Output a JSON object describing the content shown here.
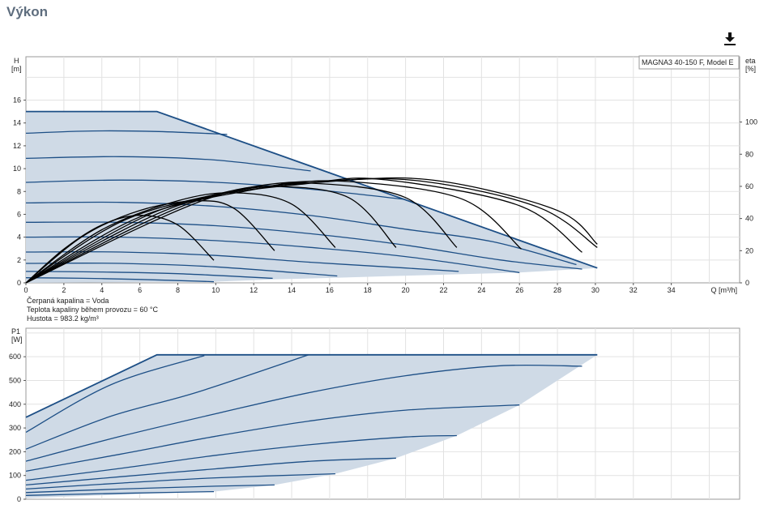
{
  "page": {
    "title": "Výkon"
  },
  "toolbar": {
    "download_icon": "download-icon"
  },
  "fluid_info": {
    "line1": "Čerpaná kapalina = Voda",
    "line2": "Teplota kapaliny během provozu = 60 °C",
    "line3": "Hustota = 983.2 kg/m³"
  },
  "colors": {
    "curve": "#1d4f86",
    "area": "#cfdae6",
    "efficiency": "#000000",
    "grid": "#e2e2e2",
    "title": "#5e6d7e"
  },
  "chart_data": [
    {
      "type": "line",
      "legend": "MAGNA3 40-150 F, Model E",
      "ylabel_top": "H",
      "ylabel_unit": "[m]",
      "y2label_top": "eta",
      "y2label_unit": "[%]",
      "xlabel": "Q [m³/h]",
      "xlim": [
        0,
        37.6
      ],
      "ylim": [
        0,
        19.8
      ],
      "x_ticks": [
        0,
        2,
        4,
        6,
        8,
        10,
        12,
        14,
        16,
        18,
        20,
        22,
        24,
        26,
        28,
        30,
        32,
        34
      ],
      "y_ticks": [
        0,
        2,
        4,
        6,
        8,
        10,
        12,
        14,
        16
      ],
      "y2_ticks": [
        0,
        20,
        40,
        60,
        80,
        100
      ],
      "y2lim": [
        0,
        100
      ],
      "grid": true,
      "max_envelope": {
        "x": [
          0,
          6.9,
          30.1
        ],
        "y": [
          15,
          15,
          1.3
        ]
      },
      "series": [
        {
          "values": [
            [
              0,
              13.1
            ],
            [
              3.5,
              13.3
            ],
            [
              7,
              13.25
            ],
            [
              10.6,
              13.0
            ]
          ]
        },
        {
          "values": [
            [
              0,
              10.9
            ],
            [
              5,
              11.05
            ],
            [
              10,
              10.75
            ],
            [
              15,
              9.8
            ]
          ]
        },
        {
          "values": [
            [
              0,
              8.8
            ],
            [
              5,
              9.0
            ],
            [
              10,
              8.8
            ],
            [
              15,
              8.2
            ],
            [
              20,
              7.3
            ]
          ]
        },
        {
          "values": [
            [
              0,
              7.0
            ],
            [
              5,
              7.05
            ],
            [
              10,
              6.7
            ],
            [
              15,
              5.9
            ],
            [
              20,
              4.7
            ],
            [
              24.6,
              3.6
            ],
            [
              29.0,
              1.6
            ]
          ]
        },
        {
          "values": [
            [
              0,
              5.3
            ],
            [
              5,
              5.3
            ],
            [
              10,
              5.0
            ],
            [
              15,
              4.3
            ],
            [
              20,
              3.3
            ],
            [
              25,
              2.0
            ],
            [
              29.3,
              1.2
            ]
          ]
        },
        {
          "values": [
            [
              0,
              4.0
            ],
            [
              5,
              4.0
            ],
            [
              10,
              3.7
            ],
            [
              15,
              3.1
            ],
            [
              20,
              2.3
            ],
            [
              26,
              0.9
            ]
          ]
        },
        {
          "values": [
            [
              0,
              2.7
            ],
            [
              5,
              2.7
            ],
            [
              10,
              2.4
            ],
            [
              15,
              1.8
            ],
            [
              20,
              1.3
            ],
            [
              22.8,
              1.0
            ]
          ]
        },
        {
          "values": [
            [
              0,
              1.7
            ],
            [
              5,
              1.7
            ],
            [
              10,
              1.4
            ],
            [
              16.4,
              0.6
            ]
          ]
        },
        {
          "values": [
            [
              0,
              1.0
            ],
            [
              4,
              0.95
            ],
            [
              8,
              0.8
            ],
            [
              13,
              0.4
            ]
          ]
        },
        {
          "values": [
            [
              0,
              0.45
            ],
            [
              3,
              0.4
            ],
            [
              6,
              0.3
            ],
            [
              9.9,
              0.1
            ]
          ]
        }
      ],
      "efficiency_curves": [
        {
          "values": [
            [
              0,
              0
            ],
            [
              2,
              21
            ],
            [
              4,
              36
            ],
            [
              6,
              42
            ],
            [
              8,
              36
            ],
            [
              9.9,
              14
            ]
          ]
        },
        {
          "values": [
            [
              0,
              0
            ],
            [
              3,
              29
            ],
            [
              6,
              45
            ],
            [
              9,
              51
            ],
            [
              11,
              46
            ],
            [
              13.1,
              20
            ]
          ]
        },
        {
          "values": [
            [
              0,
              0
            ],
            [
              4,
              33
            ],
            [
              8,
              51
            ],
            [
              11,
              56
            ],
            [
              14,
              49
            ],
            [
              16.3,
              22
            ]
          ]
        },
        {
          "values": [
            [
              0,
              0
            ],
            [
              5,
              38
            ],
            [
              10,
              55
            ],
            [
              13,
              60
            ],
            [
              17,
              53
            ],
            [
              19.5,
              22
            ]
          ]
        },
        {
          "values": [
            [
              0,
              0
            ],
            [
              6,
              41
            ],
            [
              12,
              58
            ],
            [
              15,
              62
            ],
            [
              20,
              53
            ],
            [
              22.7,
              22
            ]
          ]
        },
        {
          "values": [
            [
              0,
              0
            ],
            [
              7,
              45
            ],
            [
              13,
              60
            ],
            [
              17,
              63
            ],
            [
              23,
              52
            ],
            [
              26.1,
              21
            ]
          ]
        },
        {
          "values": [
            [
              0,
              0
            ],
            [
              8,
              48
            ],
            [
              15,
              62
            ],
            [
              19,
              64
            ],
            [
              26,
              48
            ],
            [
              29.3,
              19
            ]
          ]
        },
        {
          "values": [
            [
              0,
              0
            ],
            [
              9,
              51
            ],
            [
              16,
              63
            ],
            [
              21,
              63
            ],
            [
              27,
              47
            ],
            [
              30.1,
              22
            ]
          ]
        },
        {
          "values": [
            [
              0,
              0
            ],
            [
              10,
              54
            ],
            [
              17,
              64
            ],
            [
              22,
              63
            ],
            [
              28,
              45
            ],
            [
              30.1,
              24
            ]
          ]
        }
      ]
    },
    {
      "type": "line",
      "ylabel_top": "P1",
      "ylabel_unit": "[W]",
      "xlim": [
        0,
        37.6
      ],
      "ylim": [
        0,
        720
      ],
      "y_ticks": [
        0,
        100,
        200,
        300,
        400,
        500,
        600
      ],
      "grid": true,
      "max_envelope": {
        "x": [
          0,
          6.9,
          30.1
        ],
        "y": [
          345,
          608,
          608
        ]
      },
      "series": [
        {
          "values": [
            [
              0,
              282
            ],
            [
              4.5,
              483
            ],
            [
              9.4,
              605
            ]
          ]
        },
        {
          "values": [
            [
              0,
              211
            ],
            [
              4.5,
              350
            ],
            [
              9,
              450
            ],
            [
              14.9,
              608
            ]
          ]
        },
        {
          "values": [
            [
              0,
              160
            ],
            [
              5,
              265
            ],
            [
              10,
              360
            ],
            [
              15,
              450
            ],
            [
              20,
              520
            ],
            [
              25,
              562
            ],
            [
              29.3,
              560
            ]
          ]
        },
        {
          "values": [
            [
              0,
              118
            ],
            [
              5,
              190
            ],
            [
              10,
              265
            ],
            [
              15,
              330
            ],
            [
              20,
              375
            ],
            [
              26,
              397
            ]
          ]
        },
        {
          "values": [
            [
              0,
              80
            ],
            [
              5,
              130
            ],
            [
              10,
              185
            ],
            [
              15,
              230
            ],
            [
              20,
              262
            ],
            [
              22.7,
              268
            ]
          ]
        },
        {
          "values": [
            [
              0,
              60
            ],
            [
              5,
              95
            ],
            [
              10,
              128
            ],
            [
              15,
              160
            ],
            [
              19.5,
              173
            ]
          ]
        },
        {
          "values": [
            [
              0,
              43
            ],
            [
              5,
              68
            ],
            [
              10,
              90
            ],
            [
              16.3,
              107
            ]
          ]
        },
        {
          "values": [
            [
              0,
              28
            ],
            [
              5,
              43
            ],
            [
              10,
              55
            ],
            [
              13.1,
              60
            ]
          ]
        },
        {
          "values": [
            [
              0,
              16
            ],
            [
              5,
              25
            ],
            [
              9.9,
              32
            ]
          ]
        }
      ]
    }
  ]
}
